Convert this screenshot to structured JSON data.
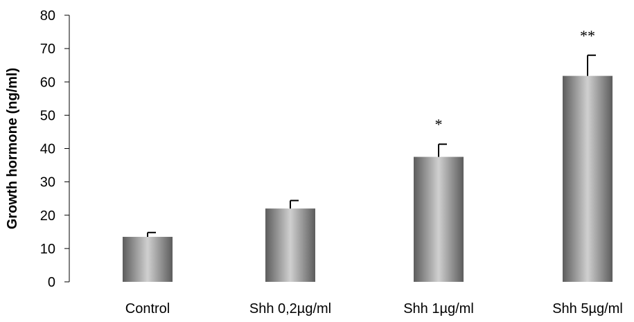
{
  "chart_data": {
    "type": "bar",
    "title": "",
    "xlabel": "",
    "ylabel": "Growth hormone (ng/ml)",
    "ylim": [
      0,
      80
    ],
    "yticks": [
      0,
      10,
      20,
      30,
      40,
      50,
      60,
      70,
      80
    ],
    "categories": [
      "Control",
      "Shh 0,2µg/ml",
      "Shh 1µg/ml",
      "Shh 5µg/ml"
    ],
    "values": [
      13.5,
      22,
      37.5,
      61.8
    ],
    "error_upper": [
      1.3,
      2.4,
      3.8,
      6.2
    ],
    "annotations": [
      "",
      "",
      "*",
      "**"
    ],
    "grid": false,
    "legend": "none",
    "bar_fill": "gradient grey",
    "colors": {
      "bar_dark": "#5c5c5c",
      "bar_light": "#d0d0d0",
      "axis": "#000000"
    }
  }
}
